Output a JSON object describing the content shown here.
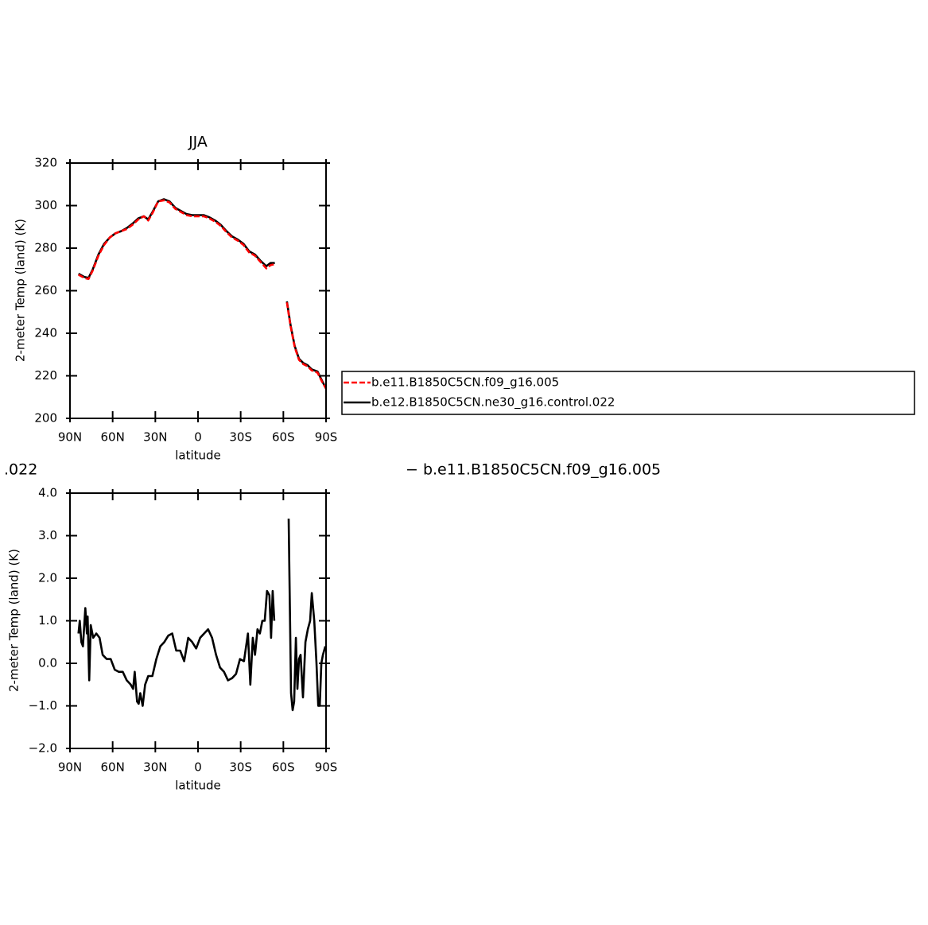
{
  "chart_data": [
    {
      "type": "line",
      "title": "JJA",
      "xlabel": "latitude",
      "ylabel": "2-meter Temp (land) (K)",
      "xlim": [
        90,
        -90
      ],
      "xticks": [
        {
          "value": 90,
          "label": "90N"
        },
        {
          "value": 60,
          "label": "60N"
        },
        {
          "value": 30,
          "label": "30N"
        },
        0,
        {
          "value": -30,
          "label": "30S"
        },
        {
          "value": -60,
          "label": "60S"
        },
        {
          "value": -90,
          "label": "90S"
        }
      ],
      "ylim": [
        200,
        320
      ],
      "yticks": [
        200,
        220,
        240,
        260,
        280,
        300,
        320
      ],
      "legend": "right",
      "x": [
        84,
        80,
        77,
        74,
        70,
        66,
        62,
        58,
        54,
        50,
        46,
        42,
        38,
        35,
        32,
        28,
        24,
        20,
        16,
        12,
        8,
        4,
        0,
        -4,
        -8,
        -12,
        -16,
        -20,
        -24,
        -28,
        -32,
        -36,
        -40,
        -44,
        -48,
        -51,
        -54,
        -58,
        -62.5,
        -65,
        -68,
        -71,
        -74,
        -77,
        -80,
        -84,
        -87,
        -90
      ],
      "series": [
        {
          "name": "b.e11.B1850C5CN.f09_g16.005",
          "color": "#ff0000",
          "dashed": true,
          "values": [
            267.5,
            266,
            265.5,
            269.5,
            276.5,
            281.5,
            285,
            287,
            288,
            289,
            291,
            293.5,
            295,
            293,
            296.5,
            302,
            302.5,
            301.5,
            298.5,
            297,
            295.5,
            295,
            295,
            295,
            294,
            292.5,
            290.5,
            287.5,
            285,
            283.5,
            281.5,
            278,
            276.5,
            273.5,
            270.5,
            272,
            272.5,
            null,
            254.5,
            243.5,
            233.5,
            227.5,
            225.5,
            224.5,
            222.5,
            221.5,
            217.5,
            214
          ]
        },
        {
          "name": "b.e12.B1850C5CN.ne30_g16.control.022",
          "color": "#000000",
          "dashed": false,
          "values": [
            268,
            266.5,
            266,
            270,
            277,
            282,
            285,
            287,
            288,
            289.5,
            291.5,
            294,
            295,
            293.5,
            297,
            302,
            303,
            302,
            299,
            297.5,
            296,
            295.5,
            295.5,
            295.5,
            294.5,
            293,
            291,
            288,
            285.5,
            284,
            282,
            278.5,
            277,
            274,
            271.5,
            273,
            273,
            null,
            255,
            244,
            234,
            228,
            226,
            225,
            223,
            222,
            218,
            214
          ]
        }
      ]
    },
    {
      "type": "line",
      "title_left": ".022",
      "title_right": "− b.e11.B1850C5CN.f09_g16.005",
      "xlabel": "latitude",
      "ylabel": "2-meter Temp (land) (K)",
      "xlim": [
        90,
        -90
      ],
      "xticks": [
        {
          "value": 90,
          "label": "90N"
        },
        {
          "value": 60,
          "label": "60N"
        },
        {
          "value": 30,
          "label": "30N"
        },
        0,
        {
          "value": -30,
          "label": "30S"
        },
        {
          "value": -60,
          "label": "60S"
        },
        {
          "value": -90,
          "label": "90S"
        }
      ],
      "ylim": [
        -2,
        4
      ],
      "yticks": [
        {
          "value": -2,
          "label": "−2.0"
        },
        {
          "value": -1,
          "label": "−1.0"
        },
        {
          "value": 0,
          "label": "0.0"
        },
        {
          "value": 1,
          "label": "1.0"
        },
        {
          "value": 2,
          "label": "2.0"
        },
        {
          "value": 3,
          "label": "3.0"
        },
        {
          "value": 4,
          "label": "4.0"
        }
      ],
      "x": [
        84,
        83.1,
        82,
        80.9,
        79.2,
        78.1,
        77.6,
        76.5,
        75.4,
        73.7,
        71.5,
        69.2,
        67,
        64.2,
        61.4,
        58.5,
        55.7,
        52.9,
        50.1,
        47.3,
        45.6,
        44.5,
        42.8,
        41.7,
        40.6,
        38.9,
        37.2,
        35,
        32.1,
        29.3,
        26.5,
        23.7,
        20.9,
        18.1,
        15.3,
        12.5,
        9.7,
        6.9,
        4.1,
        1.3,
        -1.5,
        -4.3,
        -7.1,
        -9.9,
        -12.7,
        -15.5,
        -18.3,
        -21.1,
        -23.9,
        -26.7,
        -29.5,
        -32.3,
        -35.1,
        -36.8,
        -38.5,
        -40.1,
        -41.8,
        -43.5,
        -45.2,
        -46.9,
        -48.5,
        -50.2,
        -51.4,
        -52.5,
        -53.6,
        -58.7,
        -63.7,
        -65.4,
        -66.5,
        -67.6,
        -68.8,
        -69.9,
        -71,
        -72.1,
        -73.8,
        -75.5,
        -77.2,
        -78.8,
        -80,
        -81.7,
        -83.3,
        -84.5,
        -85.6,
        -86.7,
        -87.8,
        -89.5
      ],
      "series": [
        {
          "color": "#000000",
          "dashed": false,
          "values": [
            0.7,
            1.0,
            0.5,
            0.4,
            1.3,
            0.7,
            1.1,
            -0.4,
            0.9,
            0.6,
            0.7,
            0.6,
            0.2,
            0.1,
            0.1,
            -0.15,
            -0.2,
            -0.2,
            -0.4,
            -0.5,
            -0.6,
            -0.2,
            -0.9,
            -0.95,
            -0.7,
            -1.0,
            -0.5,
            -0.3,
            -0.3,
            0.1,
            0.4,
            0.5,
            0.65,
            0.7,
            0.3,
            0.3,
            0.05,
            0.6,
            0.5,
            0.35,
            0.6,
            0.7,
            0.8,
            0.6,
            0.2,
            -0.1,
            -0.2,
            -0.4,
            -0.35,
            -0.25,
            0.1,
            0.05,
            0.7,
            -0.5,
            0.6,
            0.2,
            0.8,
            0.7,
            1.0,
            1.0,
            1.7,
            1.6,
            0.6,
            1.7,
            1.0,
            null,
            3.4,
            -0.7,
            -1.1,
            -0.9,
            0.6,
            -0.6,
            0.1,
            0.2,
            -0.8,
            0.5,
            0.8,
            1.0,
            1.65,
            1.0,
            0.0,
            -1.0,
            -1.0,
            0.0,
            0.2,
            0.4
          ]
        }
      ]
    }
  ]
}
